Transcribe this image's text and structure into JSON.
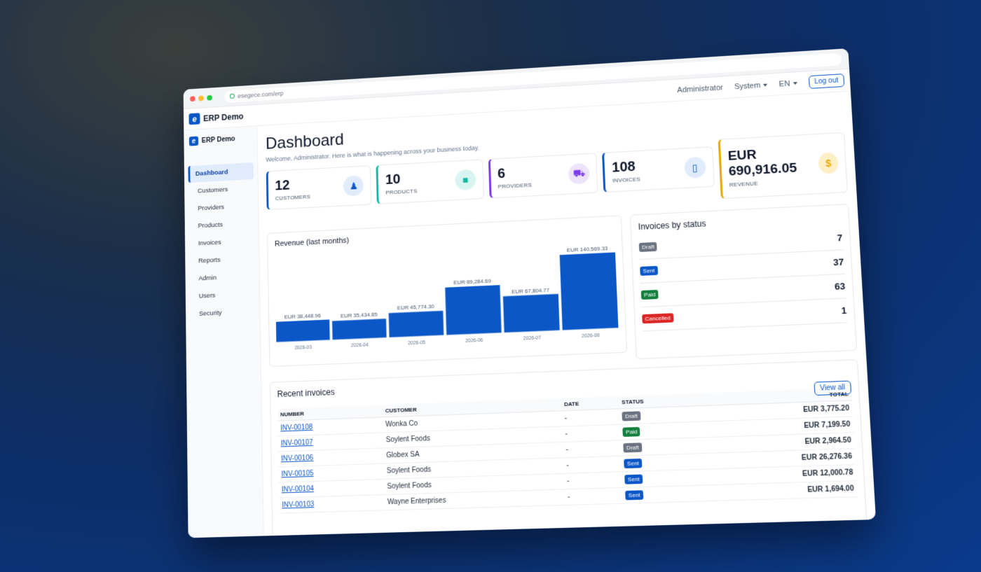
{
  "browser": {
    "url": "esegece.com/erp"
  },
  "header": {
    "brand": "ERP Demo",
    "user": "Administrator",
    "system": "System",
    "lang": "EN",
    "logout": "Log out"
  },
  "sidebar": {
    "brand": "ERP Demo",
    "items": [
      {
        "label": "Dashboard"
      },
      {
        "label": "Customers"
      },
      {
        "label": "Providers"
      },
      {
        "label": "Products"
      },
      {
        "label": "Invoices"
      },
      {
        "label": "Reports"
      },
      {
        "label": "Admin"
      },
      {
        "label": "Users"
      },
      {
        "label": "Security"
      }
    ]
  },
  "page": {
    "title": "Dashboard",
    "subtitle": "Welcome, Administrator. Here is what is happening across your business today."
  },
  "cards": [
    {
      "value": "12",
      "label": "CUSTOMERS",
      "icon": "user-icon",
      "color": "#0b57c7"
    },
    {
      "value": "10",
      "label": "PRODUCTS",
      "icon": "box-icon",
      "color": "#14b8a6"
    },
    {
      "value": "6",
      "label": "PROVIDERS",
      "icon": "truck-icon",
      "color": "#7c3aed"
    },
    {
      "value": "108",
      "label": "INVOICES",
      "icon": "phone-icon",
      "color": "#0b57c7"
    },
    {
      "value": "EUR 690,916.05",
      "label": "REVENUE",
      "icon": "dollar-icon",
      "color": "#e8a90c"
    }
  ],
  "revenue_panel": {
    "title": "Revenue (last months)"
  },
  "chart_data": {
    "type": "bar",
    "categories": [
      "2026-03",
      "2026-04",
      "2026-05",
      "2026-06",
      "2026-07",
      "2026-08"
    ],
    "values": [
      38448.96,
      35434.85,
      45774.3,
      89284.69,
      67804.77,
      140569.33
    ],
    "data_labels": [
      "EUR 38,448.96",
      "EUR 35,434.85",
      "EUR 45,774.30",
      "EUR 89,284.69",
      "EUR 67,804.77",
      "EUR 140,569.33"
    ],
    "title": "Revenue (last months)",
    "color": "#0b57c7",
    "ylim": [
      0,
      150000
    ]
  },
  "status_panel": {
    "title": "Invoices by status",
    "rows": [
      {
        "label": "Draft",
        "count": "7"
      },
      {
        "label": "Sent",
        "count": "37"
      },
      {
        "label": "Paid",
        "count": "63"
      },
      {
        "label": "Cancelled",
        "count": "1"
      }
    ]
  },
  "recent": {
    "title": "Recent invoices",
    "view_all": "View all",
    "columns": [
      "NUMBER",
      "CUSTOMER",
      "DATE",
      "STATUS",
      "TOTAL"
    ],
    "rows": [
      {
        "number": "INV-00108",
        "customer": "Wonka Co",
        "date": "-",
        "status": "Draft",
        "total": "EUR 3,775.20"
      },
      {
        "number": "INV-00107",
        "customer": "Soylent Foods",
        "date": "-",
        "status": "Paid",
        "total": "EUR 7,199.50"
      },
      {
        "number": "INV-00106",
        "customer": "Globex SA",
        "date": "-",
        "status": "Draft",
        "total": "EUR 2,964.50"
      },
      {
        "number": "INV-00105",
        "customer": "Soylent Foods",
        "date": "-",
        "status": "Sent",
        "total": "EUR 26,276.36"
      },
      {
        "number": "INV-00104",
        "customer": "Soylent Foods",
        "date": "-",
        "status": "Sent",
        "total": "EUR 12,000.78"
      },
      {
        "number": "INV-00103",
        "customer": "Wayne Enterprises",
        "date": "-",
        "status": "Sent",
        "total": "EUR 1,694.00"
      }
    ]
  }
}
